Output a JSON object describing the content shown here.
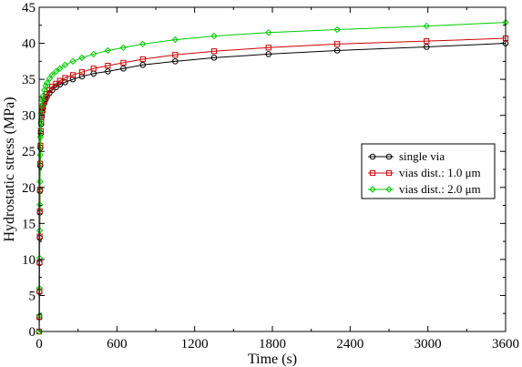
{
  "chart_data": {
    "type": "line",
    "title": "",
    "xlabel": "Time (s)",
    "ylabel": "Hydrostatic stress (MPa)",
    "xlim": [
      0,
      3600
    ],
    "ylim": [
      0,
      45
    ],
    "x_ticks": [
      0,
      600,
      1200,
      1800,
      2400,
      3000,
      3600
    ],
    "y_ticks": [
      0,
      5,
      10,
      15,
      20,
      25,
      30,
      35,
      40,
      45
    ],
    "x_tick_labels": [
      "0",
      "600",
      "1200",
      "1800",
      "2400",
      "3000",
      "3600"
    ],
    "y_tick_labels": [
      "0",
      "5",
      "10",
      "15",
      "20",
      "25",
      "30",
      "35",
      "40",
      "45"
    ],
    "grid": false,
    "legend_position": "right-middle",
    "series": [
      {
        "name": "single via",
        "color": "#000000",
        "marker": "circle",
        "x": [
          0,
          1,
          2,
          3,
          4,
          5,
          6,
          8,
          10,
          13,
          16,
          20,
          25,
          30,
          40,
          50,
          60,
          80,
          100,
          130,
          160,
          200,
          260,
          330,
          420,
          530,
          650,
          800,
          1050,
          1350,
          1770,
          2300,
          2990,
          3600
        ],
        "y": [
          0,
          2.0,
          5.5,
          9.5,
          13.0,
          16.5,
          19.5,
          23.0,
          25.5,
          27.5,
          28.8,
          29.8,
          30.5,
          31.0,
          31.7,
          32.2,
          32.6,
          33.1,
          33.5,
          33.9,
          34.3,
          34.6,
          35.0,
          35.4,
          35.8,
          36.1,
          36.5,
          37.0,
          37.5,
          38.0,
          38.5,
          39.0,
          39.5,
          40.0
        ]
      },
      {
        "name": "vias dist.: 1.0 μm",
        "color": "#cc0000",
        "marker": "square",
        "x": [
          0,
          1,
          2,
          3,
          4,
          5,
          6,
          8,
          10,
          13,
          16,
          20,
          25,
          30,
          40,
          50,
          60,
          80,
          100,
          130,
          160,
          200,
          260,
          330,
          420,
          530,
          650,
          800,
          1050,
          1350,
          1770,
          2300,
          2990,
          3600
        ],
        "y": [
          0,
          2.0,
          5.6,
          9.6,
          13.2,
          16.7,
          19.7,
          23.3,
          25.8,
          27.8,
          29.1,
          30.1,
          30.8,
          31.3,
          32.0,
          32.6,
          33.0,
          33.5,
          34.0,
          34.4,
          34.8,
          35.2,
          35.6,
          36.0,
          36.5,
          36.9,
          37.3,
          37.8,
          38.4,
          38.9,
          39.4,
          39.9,
          40.3,
          40.7
        ]
      },
      {
        "name": "vias dist.: 2.0 μm",
        "color": "#00cc00",
        "marker": "diamond",
        "x": [
          0,
          1,
          2,
          3,
          4,
          5,
          6,
          8,
          10,
          13,
          16,
          20,
          25,
          30,
          40,
          50,
          60,
          80,
          100,
          130,
          160,
          200,
          260,
          330,
          420,
          530,
          650,
          800,
          1050,
          1350,
          1770,
          2300,
          2990,
          3600
        ],
        "y": [
          0,
          2.2,
          6.0,
          10.2,
          14.0,
          17.6,
          20.8,
          24.5,
          27.0,
          29.0,
          30.3,
          31.3,
          32.1,
          32.7,
          33.5,
          34.1,
          34.5,
          35.1,
          35.6,
          36.1,
          36.5,
          37.0,
          37.5,
          38.0,
          38.5,
          39.0,
          39.4,
          39.9,
          40.5,
          41.0,
          41.5,
          41.9,
          42.4,
          42.9
        ]
      }
    ]
  }
}
